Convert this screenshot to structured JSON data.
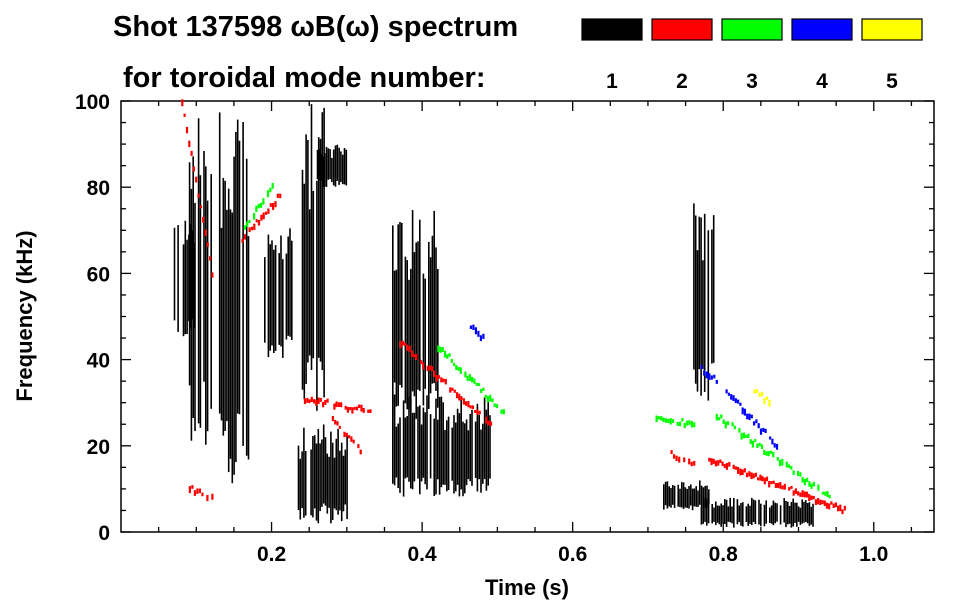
{
  "chart_data": {
    "type": "scatter",
    "title": "Shot 137598 ωB(ω) spectrum",
    "subtitle": "for toroidal mode number:",
    "xlabel": "Time (s)",
    "ylabel": "Frequency (kHz)",
    "xlim": [
      0,
      1.08
    ],
    "ylim": [
      0,
      100
    ],
    "xticks": [
      0.2,
      0.4,
      0.6,
      0.8,
      1.0
    ],
    "xtick_labels": [
      "0.2",
      "0.4",
      "0.6",
      "0.8",
      "1.0"
    ],
    "yticks": [
      0,
      20,
      40,
      60,
      80,
      100
    ],
    "ytick_labels": [
      "0",
      "20",
      "40",
      "60",
      "80",
      "100"
    ],
    "legend": [
      {
        "label": "1",
        "color": "#000000"
      },
      {
        "label": "2",
        "color": "#ff0000"
      },
      {
        "label": "3",
        "color": "#00ff00"
      },
      {
        "label": "4",
        "color": "#0000ff"
      },
      {
        "label": "5",
        "color": "#ffff00"
      }
    ],
    "series": [
      {
        "name": "n=1",
        "color": "#000000",
        "regions": [
          {
            "t": [
              0.07,
              0.1
            ],
            "f": [
              45,
              75
            ]
          },
          {
            "t": [
              0.09,
              0.12
            ],
            "f": [
              20,
              100
            ]
          },
          {
            "t": [
              0.13,
              0.17
            ],
            "f": [
              10,
              100
            ]
          },
          {
            "t": [
              0.19,
              0.23
            ],
            "f": [
              40,
              72
            ]
          },
          {
            "t": [
              0.24,
              0.27
            ],
            "f": [
              28,
              100
            ]
          },
          {
            "t": [
              0.23,
              0.3
            ],
            "f": [
              2,
              25
            ]
          },
          {
            "t": [
              0.26,
              0.3
            ],
            "f": [
              80,
              90
            ]
          },
          {
            "t": [
              0.36,
              0.49
            ],
            "f": [
              8,
              32
            ]
          },
          {
            "t": [
              0.36,
              0.42
            ],
            "f": [
              25,
              75
            ]
          },
          {
            "t": [
              0.72,
              0.78
            ],
            "f": [
              5,
              12
            ]
          },
          {
            "t": [
              0.77,
              0.92
            ],
            "f": [
              1,
              8
            ]
          },
          {
            "t": [
              0.76,
              0.79
            ],
            "f": [
              30,
              78
            ]
          }
        ]
      },
      {
        "name": "n=2",
        "color": "#ff0000",
        "ridges": [
          {
            "t": [
              0.08,
              0.12
            ],
            "f": [
              100,
              60
            ]
          },
          {
            "t": [
              0.16,
              0.21
            ],
            "f": [
              68,
              78
            ]
          },
          {
            "t": [
              0.24,
              0.33
            ],
            "f": [
              31,
              28
            ]
          },
          {
            "t": [
              0.28,
              0.32
            ],
            "f": [
              26,
              18
            ]
          },
          {
            "t": [
              0.37,
              0.49
            ],
            "f": [
              44,
              25
            ]
          },
          {
            "t": [
              0.73,
              0.76
            ],
            "f": [
              18,
              16
            ]
          },
          {
            "t": [
              0.78,
              0.96
            ],
            "f": [
              17,
              5
            ]
          },
          {
            "t": [
              0.09,
              0.12
            ],
            "f": [
              10,
              8
            ]
          }
        ]
      },
      {
        "name": "n=3",
        "color": "#00ff00",
        "ridges": [
          {
            "t": [
              0.16,
              0.2
            ],
            "f": [
              70,
              80
            ]
          },
          {
            "t": [
              0.42,
              0.51
            ],
            "f": [
              43,
              27
            ]
          },
          {
            "t": [
              0.71,
              0.76
            ],
            "f": [
              26,
              25
            ]
          },
          {
            "t": [
              0.79,
              0.94
            ],
            "f": [
              27,
              8
            ]
          }
        ]
      },
      {
        "name": "n=4",
        "color": "#0000ff",
        "ridges": [
          {
            "t": [
              0.46,
              0.48
            ],
            "f": [
              48,
              45
            ]
          },
          {
            "t": [
              0.8,
              0.87
            ],
            "f": [
              33,
              20
            ]
          },
          {
            "t": [
              0.77,
              0.79
            ],
            "f": [
              38,
              35
            ]
          }
        ]
      },
      {
        "name": "n=5",
        "color": "#ffff00",
        "ridges": [
          {
            "t": [
              0.84,
              0.86
            ],
            "f": [
              33,
              30
            ]
          }
        ]
      }
    ]
  }
}
